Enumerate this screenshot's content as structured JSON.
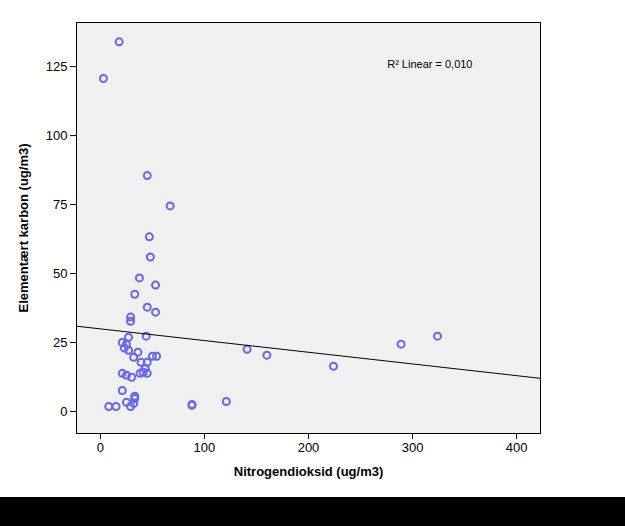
{
  "chart_data": {
    "type": "scatter",
    "x_label": "Nitrogendioksid (ug/m3)",
    "y_label": "Elementært karbon (ug/m3)",
    "annotation": "R² Linear = 0,010",
    "x": [
      2.9,
      18,
      45,
      67,
      47,
      48,
      53,
      37.5,
      33,
      45,
      53,
      29,
      29,
      44,
      27,
      21,
      25,
      23,
      27,
      36,
      32,
      50,
      54,
      39,
      45,
      21,
      25,
      30,
      41,
      45,
      38,
      43,
      21,
      33,
      33,
      25,
      32,
      29,
      8,
      15,
      88,
      88,
      121,
      141,
      160,
      224,
      289,
      324
    ],
    "values": [
      120.7,
      134,
      85.5,
      74.5,
      63.3,
      56,
      45.8,
      48.4,
      42.5,
      37.8,
      36,
      34.2,
      32.7,
      27.3,
      26.9,
      25,
      24.4,
      23,
      22.2,
      21.5,
      19.6,
      20,
      20,
      17.8,
      17.8,
      13.8,
      13.1,
      12.4,
      14.2,
      13.8,
      13.8,
      15.6,
      7.6,
      5.5,
      4.7,
      3.3,
      2.9,
      1.8,
      1.8,
      1.8,
      2.5,
      2.2,
      3.6,
      22.5,
      20.4,
      16.4,
      24.4,
      27.3
    ],
    "color": "#6666ee",
    "marker": "circle",
    "fit_line": {
      "x": [
        -23,
        423
      ],
      "values": [
        30.9,
        12
      ],
      "color": "#000000"
    },
    "xlim": [
      -23,
      423
    ],
    "ylim": [
      -8,
      141
    ],
    "xticks": [
      0,
      100,
      200,
      300,
      400
    ],
    "yticks": [
      0,
      25,
      50,
      75,
      100,
      125
    ],
    "grid": false
  }
}
